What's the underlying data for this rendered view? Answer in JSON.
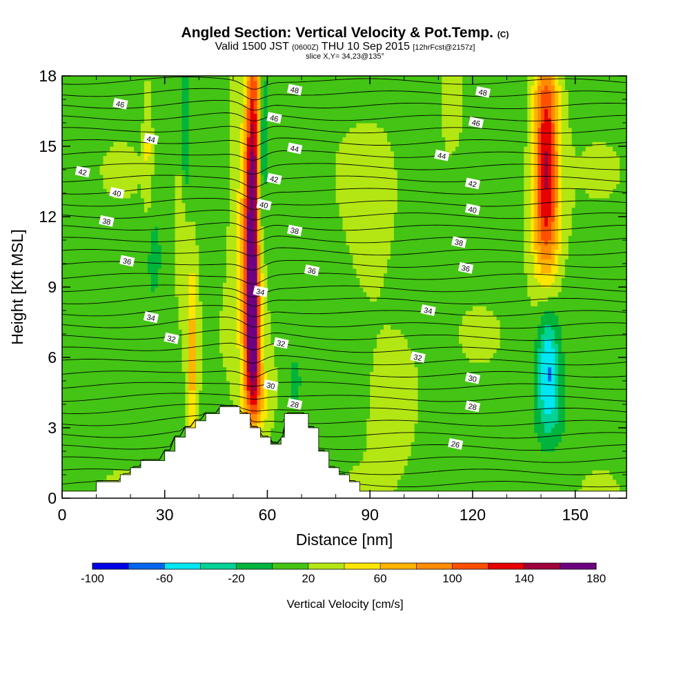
{
  "header": {
    "title": "Angled Section: Vertical Velocity & Pot.Temp.",
    "title_mark": "(C)",
    "valid_prefix": "Valid 1500 JST",
    "valid_zulu": "(0600Z)",
    "valid_date": "THU 10 Sep 2015",
    "forecast": "[12hrFcst@2157z]",
    "slice": "slice X,Y= 34,23@135°"
  },
  "chart_data": {
    "type": "heatmap",
    "xlabel": "Distance [nm]",
    "ylabel": "Height [Kft MSL]",
    "xlim": [
      0,
      165
    ],
    "ylim": [
      0,
      18
    ],
    "x_ticks": [
      0,
      30,
      60,
      90,
      120,
      150
    ],
    "y_ticks": [
      0,
      3,
      6,
      9,
      12,
      15,
      18
    ],
    "colorbar": {
      "label": "Vertical Velocity [cm/s]",
      "min": -100,
      "max": 180,
      "step": 20,
      "tick_labels": [
        -100,
        -60,
        -20,
        20,
        60,
        100,
        140,
        180
      ],
      "colors": [
        "#0000e6",
        "#0066ee",
        "#00e6f2",
        "#00d296",
        "#00b43c",
        "#44c414",
        "#b4e614",
        "#ffe600",
        "#ffb400",
        "#ff8c00",
        "#ff5000",
        "#e60000",
        "#a0003c",
        "#6e0080"
      ]
    },
    "terrain_kft": [
      [
        0,
        0.3
      ],
      [
        10,
        0.3
      ],
      [
        10,
        0.7
      ],
      [
        17,
        0.7
      ],
      [
        17,
        1.0
      ],
      [
        20,
        1.0
      ],
      [
        20,
        1.3
      ],
      [
        23,
        1.3
      ],
      [
        23,
        1.6
      ],
      [
        30,
        1.6
      ],
      [
        30,
        2.0
      ],
      [
        33,
        2.0
      ],
      [
        33,
        2.6
      ],
      [
        36,
        2.6
      ],
      [
        36,
        3.0
      ],
      [
        39,
        3.0
      ],
      [
        39,
        3.3
      ],
      [
        42,
        3.3
      ],
      [
        42,
        3.6
      ],
      [
        46,
        3.6
      ],
      [
        46,
        3.9
      ],
      [
        52,
        3.9
      ],
      [
        52,
        3.6
      ],
      [
        55,
        3.6
      ],
      [
        55,
        3.0
      ],
      [
        58,
        3.0
      ],
      [
        58,
        2.6
      ],
      [
        61,
        2.6
      ],
      [
        61,
        2.3
      ],
      [
        64,
        2.3
      ],
      [
        64,
        2.6
      ],
      [
        65,
        2.6
      ],
      [
        65,
        3.6
      ],
      [
        72,
        3.6
      ],
      [
        72,
        3.0
      ],
      [
        75,
        3.0
      ],
      [
        75,
        2.0
      ],
      [
        78,
        2.0
      ],
      [
        78,
        1.3
      ],
      [
        81,
        1.3
      ],
      [
        81,
        1.0
      ],
      [
        84,
        1.0
      ],
      [
        84,
        0.7
      ],
      [
        87,
        0.7
      ],
      [
        87,
        0.3
      ],
      [
        165,
        0.3
      ]
    ],
    "w_features": [
      {
        "x": 55.5,
        "z": 12.5,
        "rx": 2.4,
        "rz": 6.8,
        "value": 170,
        "tilt": 0.08
      },
      {
        "x": 56,
        "z": 7,
        "rx": 2.0,
        "rz": 3.0,
        "value": 110,
        "tilt": 0
      },
      {
        "x": 57,
        "z": 4.2,
        "rx": 3.8,
        "rz": 1.6,
        "value": 45,
        "tilt": 0
      },
      {
        "x": 58.5,
        "z": 15,
        "rx": 1.3,
        "rz": 4.5,
        "value": -50,
        "tilt": 0.1
      },
      {
        "x": 51,
        "z": 12,
        "rx": 2.5,
        "rz": 5.5,
        "value": 25,
        "tilt": 0
      },
      {
        "x": 38,
        "z": 6,
        "rx": 1.6,
        "rz": 4.2,
        "value": 55,
        "tilt": 0
      },
      {
        "x": 35,
        "z": 11,
        "rx": 1.6,
        "rz": 3.2,
        "value": 28,
        "tilt": 0
      },
      {
        "x": 36,
        "z": 15.5,
        "rx": 1.2,
        "rz": 3.2,
        "value": -38,
        "tilt": 0
      },
      {
        "x": 27,
        "z": 10.5,
        "rx": 2.4,
        "rz": 2.0,
        "value": -22,
        "tilt": 0
      },
      {
        "x": 25,
        "z": 15,
        "rx": 1.0,
        "rz": 2.5,
        "value": 28,
        "tilt": 0
      },
      {
        "x": 68,
        "z": 5,
        "rx": 2.0,
        "rz": 1.2,
        "value": -25,
        "tilt": 0
      },
      {
        "x": 141.5,
        "z": 15,
        "rx": 3.6,
        "rz": 4.8,
        "value": 118,
        "tilt": 0
      },
      {
        "x": 141.5,
        "z": 11.5,
        "rx": 4.4,
        "rz": 2.6,
        "value": 35,
        "tilt": 0
      },
      {
        "x": 142,
        "z": 5.8,
        "rx": 3.2,
        "rz": 2.4,
        "value": -70,
        "tilt": 0
      },
      {
        "x": 143,
        "z": 3.6,
        "rx": 5.0,
        "rz": 1.8,
        "value": -25,
        "tilt": 0
      },
      {
        "x": 97,
        "z": 4.5,
        "rx": 6,
        "rz": 2.5,
        "value": 25,
        "tilt": 0
      },
      {
        "x": 114,
        "z": 16.5,
        "rx": 3.0,
        "rz": 2.0,
        "value": 25,
        "tilt": 0
      },
      {
        "x": 90,
        "z": 10,
        "rx": 7,
        "rz": 4.5,
        "value": 12,
        "tilt": 0
      }
    ],
    "theta_labels": [
      {
        "x": 17,
        "z": 16.8,
        "text": "46"
      },
      {
        "x": 26,
        "z": 15.3,
        "text": "44"
      },
      {
        "x": 6,
        "z": 13.9,
        "text": "42"
      },
      {
        "x": 16,
        "z": 13.0,
        "text": "40"
      },
      {
        "x": 13,
        "z": 11.8,
        "text": "38"
      },
      {
        "x": 19,
        "z": 10.1,
        "text": "36"
      },
      {
        "x": 26,
        "z": 7.7,
        "text": "34"
      },
      {
        "x": 32,
        "z": 6.8,
        "text": "32"
      },
      {
        "x": 68,
        "z": 17.4,
        "text": "48"
      },
      {
        "x": 62,
        "z": 16.2,
        "text": "46"
      },
      {
        "x": 68,
        "z": 14.9,
        "text": "44"
      },
      {
        "x": 62,
        "z": 13.6,
        "text": "42"
      },
      {
        "x": 59,
        "z": 12.5,
        "text": "40"
      },
      {
        "x": 68,
        "z": 11.4,
        "text": "38"
      },
      {
        "x": 73,
        "z": 9.7,
        "text": "36"
      },
      {
        "x": 58,
        "z": 8.8,
        "text": "34"
      },
      {
        "x": 64,
        "z": 6.6,
        "text": "32"
      },
      {
        "x": 61,
        "z": 4.8,
        "text": "30"
      },
      {
        "x": 68,
        "z": 4.0,
        "text": "28"
      },
      {
        "x": 123,
        "z": 17.3,
        "text": "48"
      },
      {
        "x": 121,
        "z": 16.0,
        "text": "46"
      },
      {
        "x": 111,
        "z": 14.6,
        "text": "44"
      },
      {
        "x": 120,
        "z": 13.4,
        "text": "42"
      },
      {
        "x": 120,
        "z": 12.3,
        "text": "40"
      },
      {
        "x": 116,
        "z": 10.9,
        "text": "38"
      },
      {
        "x": 118,
        "z": 9.8,
        "text": "36"
      },
      {
        "x": 107,
        "z": 8.0,
        "text": "34"
      },
      {
        "x": 104,
        "z": 6.0,
        "text": "32"
      },
      {
        "x": 120,
        "z": 5.1,
        "text": "30"
      },
      {
        "x": 120,
        "z": 3.9,
        "text": "28"
      },
      {
        "x": 115,
        "z": 2.3,
        "text": "26"
      }
    ]
  }
}
